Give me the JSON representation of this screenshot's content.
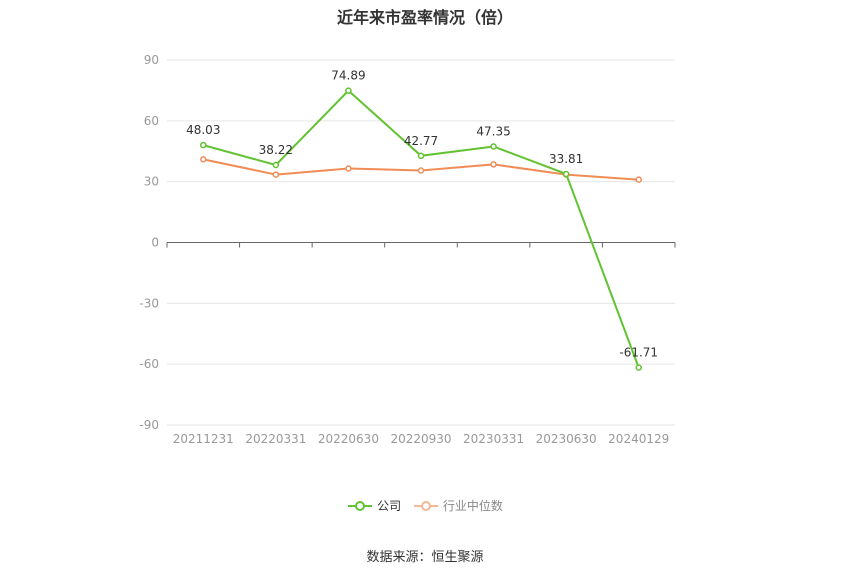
{
  "chart_data": {
    "type": "line",
    "title": "近年来市盈率情况（倍）",
    "categories": [
      "20211231",
      "20220331",
      "20220630",
      "20220930",
      "20230331",
      "20230630",
      "20240129"
    ],
    "series": [
      {
        "name": "公司",
        "color": "#62c232",
        "values": [
          48.03,
          38.22,
          74.89,
          42.77,
          47.35,
          33.81,
          -61.71
        ],
        "labels": [
          "48.03",
          "38.22",
          "74.89",
          "42.77",
          "47.35",
          "33.81",
          "-61.71"
        ]
      },
      {
        "name": "行业中位数",
        "color": "#f08c56",
        "values": [
          41.0,
          33.5,
          36.5,
          35.5,
          38.5,
          33.5,
          31.0
        ]
      }
    ],
    "yticks": [
      90,
      60,
      30,
      0,
      -30,
      -60,
      -90
    ],
    "ytick_labels": [
      "90",
      "60",
      "30",
      "0",
      "-30",
      "-60",
      "-90"
    ],
    "ylim": [
      -90,
      90
    ],
    "grid": true,
    "legend": "bottom-center"
  },
  "source": "数据来源：恒生聚源"
}
